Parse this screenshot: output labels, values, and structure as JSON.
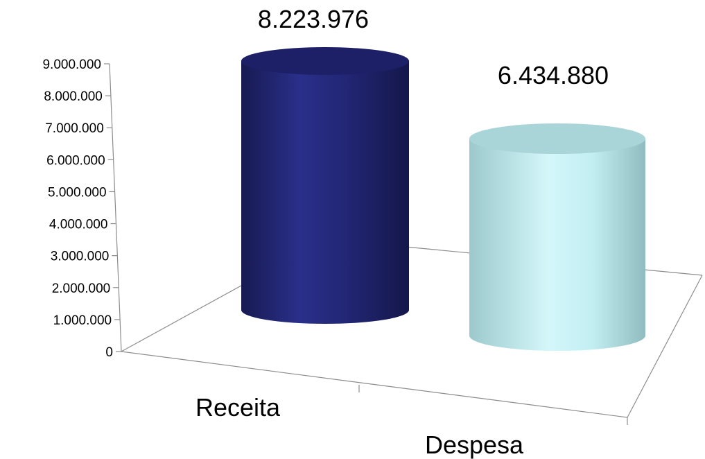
{
  "chart_data": {
    "type": "bar",
    "style": "3d-cylinder",
    "categories": [
      "Receita",
      "Despesa"
    ],
    "series": [
      {
        "values": [
          8223976,
          6434880
        ],
        "colors": [
          "#1f2270",
          "#c8f0f4"
        ]
      }
    ],
    "data_labels": [
      "8.223.976",
      "6.434.880"
    ],
    "y_tick_labels": [
      "0",
      "1.000.000",
      "2.000.000",
      "3.000.000",
      "4.000.000",
      "5.000.000",
      "6.000.000",
      "7.000.000",
      "8.000.000",
      "9.000.000"
    ],
    "ylim": [
      0,
      9000000
    ],
    "title": "",
    "xlabel": "",
    "ylabel": "",
    "grid": false,
    "legend": "none"
  }
}
